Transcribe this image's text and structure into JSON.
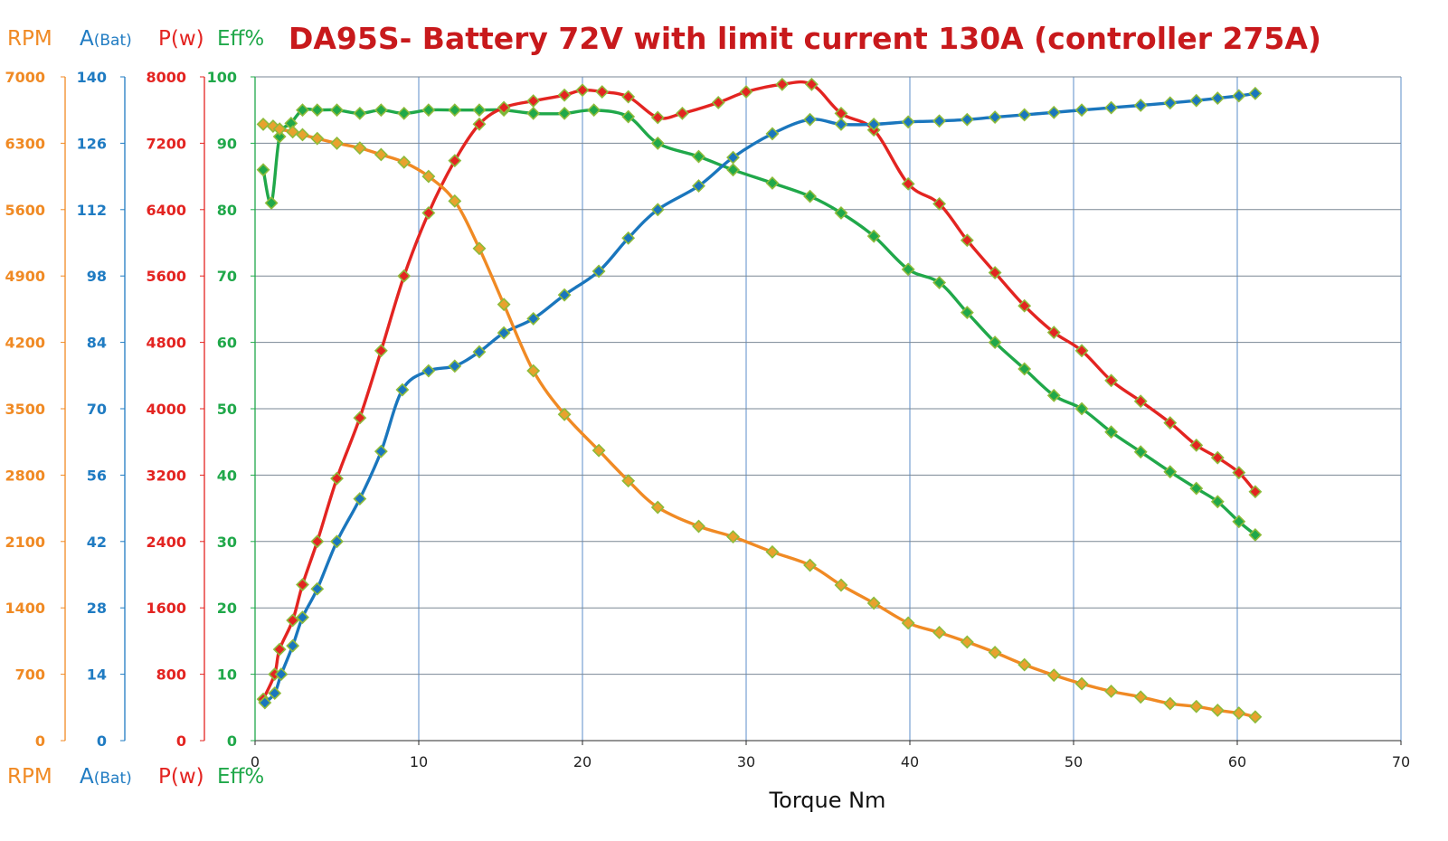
{
  "chart_data": {
    "type": "line",
    "title": "DA95S- Battery 72V with limit current 130A (controller 275A)",
    "xlabel": "Torque Nm",
    "xlim": [
      0,
      70
    ],
    "x_ticks": [
      "0",
      "10",
      "20",
      "30",
      "40",
      "50",
      "60",
      "70"
    ],
    "grid": true,
    "legend_rows": {
      "top": [
        {
          "text": "RPM",
          "color": "#f08a24"
        },
        {
          "text": "A",
          "small": "(Bat)",
          "color": "#1f7bc2"
        },
        {
          "text": "P(w)",
          "color": "#e32421"
        },
        {
          "text": "Eff%",
          "color": "#20a84a"
        }
      ],
      "bottom": [
        {
          "text": "RPM",
          "color": "#f08a24"
        },
        {
          "text": "A",
          "small": "(Bat)",
          "color": "#1f7bc2"
        },
        {
          "text": "P(w)",
          "color": "#e32421"
        },
        {
          "text": "Eff%",
          "color": "#20a84a"
        }
      ]
    },
    "y_axes": [
      {
        "name": "RPM",
        "color": "#f08a24",
        "ylim": [
          0,
          7000
        ],
        "ticks": [
          "0",
          "700",
          "1400",
          "2100",
          "2800",
          "3500",
          "4200",
          "4900",
          "5600",
          "6300",
          "7000"
        ]
      },
      {
        "name": "A(Bat)",
        "color": "#1f7bc2",
        "ylim": [
          0,
          140
        ],
        "ticks": [
          "0",
          "14",
          "28",
          "42",
          "56",
          "70",
          "84",
          "98",
          "112",
          "126",
          "140"
        ]
      },
      {
        "name": "P(w)",
        "color": "#e32421",
        "ylim": [
          0,
          8000
        ],
        "ticks": [
          "0",
          "800",
          "1600",
          "2400",
          "3200",
          "4000",
          "4800",
          "5600",
          "6400",
          "7200",
          "8000"
        ]
      },
      {
        "name": "Eff%",
        "color": "#20a84a",
        "ylim": [
          0,
          100
        ],
        "ticks": [
          "0",
          "10",
          "20",
          "30",
          "40",
          "50",
          "60",
          "70",
          "80",
          "90",
          "100"
        ]
      }
    ],
    "series": [
      {
        "axis": 0,
        "color": "#f08a24",
        "marker": "#e8a22e",
        "x": [
          0.5,
          1.1,
          1.5,
          2.3,
          2.9,
          3.8,
          5.0,
          6.4,
          7.7,
          9.1,
          10.6,
          12.2,
          13.7,
          15.2,
          17.0,
          18.9,
          21.0,
          22.8,
          24.6,
          27.1,
          29.2,
          31.6,
          33.9,
          35.8,
          37.8,
          39.9,
          41.8,
          43.5,
          45.2,
          47.0,
          48.8,
          50.5,
          52.3,
          54.1,
          55.9,
          57.5,
          58.8,
          60.1,
          61.1
        ],
        "y": [
          6500,
          6480,
          6450,
          6420,
          6390,
          6350,
          6300,
          6250,
          6180,
          6100,
          5950,
          5690,
          5190,
          4600,
          3900,
          3440,
          3060,
          2740,
          2460,
          2260,
          2150,
          1990,
          1850,
          1640,
          1450,
          1240,
          1140,
          1040,
          930,
          800,
          690,
          600,
          520,
          460,
          390,
          360,
          320,
          290,
          250
        ]
      },
      {
        "axis": 1,
        "color": "#1a76bd",
        "marker": "#1a76bd",
        "x": [
          0.6,
          1.2,
          1.6,
          2.3,
          2.9,
          3.8,
          5.0,
          6.4,
          7.7,
          9.0,
          10.6,
          12.2,
          13.7,
          15.2,
          17.0,
          18.9,
          21.0,
          22.8,
          24.6,
          27.1,
          29.2,
          31.6,
          33.9,
          35.8,
          37.8,
          39.9,
          41.8,
          43.5,
          45.2,
          47.0,
          48.8,
          50.5,
          52.3,
          54.1,
          55.9,
          57.5,
          58.8,
          60.1,
          61.1
        ],
        "y": [
          8,
          10,
          14,
          20,
          26,
          32,
          42,
          51,
          61,
          74,
          78,
          79,
          82,
          86,
          89,
          94,
          99,
          106,
          112,
          117,
          123,
          128,
          131,
          130,
          130,
          130.5,
          130.7,
          131,
          131.5,
          132,
          132.5,
          133,
          133.5,
          134,
          134.5,
          135,
          135.5,
          136,
          136.5
        ]
      },
      {
        "axis": 2,
        "color": "#e32421",
        "marker": "#e32421",
        "x": [
          0.5,
          1.2,
          1.5,
          2.3,
          2.9,
          3.8,
          5.0,
          6.4,
          7.7,
          9.1,
          10.6,
          12.2,
          13.7,
          15.2,
          17.0,
          18.9,
          20.0,
          21.2,
          22.8,
          24.6,
          26.1,
          28.3,
          30.0,
          32.2,
          34.0,
          35.8,
          37.8,
          39.9,
          41.8,
          43.5,
          45.2,
          47.0,
          48.8,
          50.5,
          52.3,
          54.1,
          55.9,
          57.5,
          58.8,
          60.1,
          61.1
        ],
        "y": [
          500,
          800,
          1100,
          1450,
          1880,
          2400,
          3160,
          3890,
          4700,
          5600,
          6360,
          6990,
          7430,
          7630,
          7710,
          7780,
          7840,
          7820,
          7760,
          7510,
          7560,
          7690,
          7820,
          7910,
          7910,
          7560,
          7360,
          6710,
          6470,
          6030,
          5640,
          5240,
          4920,
          4700,
          4340,
          4090,
          3830,
          3560,
          3410,
          3230,
          3000
        ]
      },
      {
        "axis": 3,
        "color": "#20a84a",
        "marker": "#20a84a",
        "x": [
          0.5,
          1.0,
          1.5,
          2.2,
          2.9,
          3.8,
          5.0,
          6.4,
          7.7,
          9.1,
          10.6,
          12.2,
          13.7,
          15.2,
          17.0,
          18.9,
          20.7,
          22.8,
          24.6,
          27.1,
          29.2,
          31.6,
          33.9,
          35.8,
          37.8,
          39.9,
          41.8,
          43.5,
          45.2,
          47.0,
          48.8,
          50.5,
          52.3,
          54.1,
          55.9,
          57.5,
          58.8,
          60.1,
          61.1
        ],
        "y": [
          86,
          81,
          91,
          93,
          95,
          95,
          95,
          94.5,
          95,
          94.5,
          95,
          95,
          95,
          95,
          94.5,
          94.5,
          95,
          94,
          90,
          88,
          86,
          84,
          82,
          79.5,
          76,
          71,
          69,
          64.5,
          60,
          56,
          52,
          50,
          46.5,
          43.5,
          40.5,
          38,
          36,
          33,
          31
        ]
      }
    ]
  }
}
